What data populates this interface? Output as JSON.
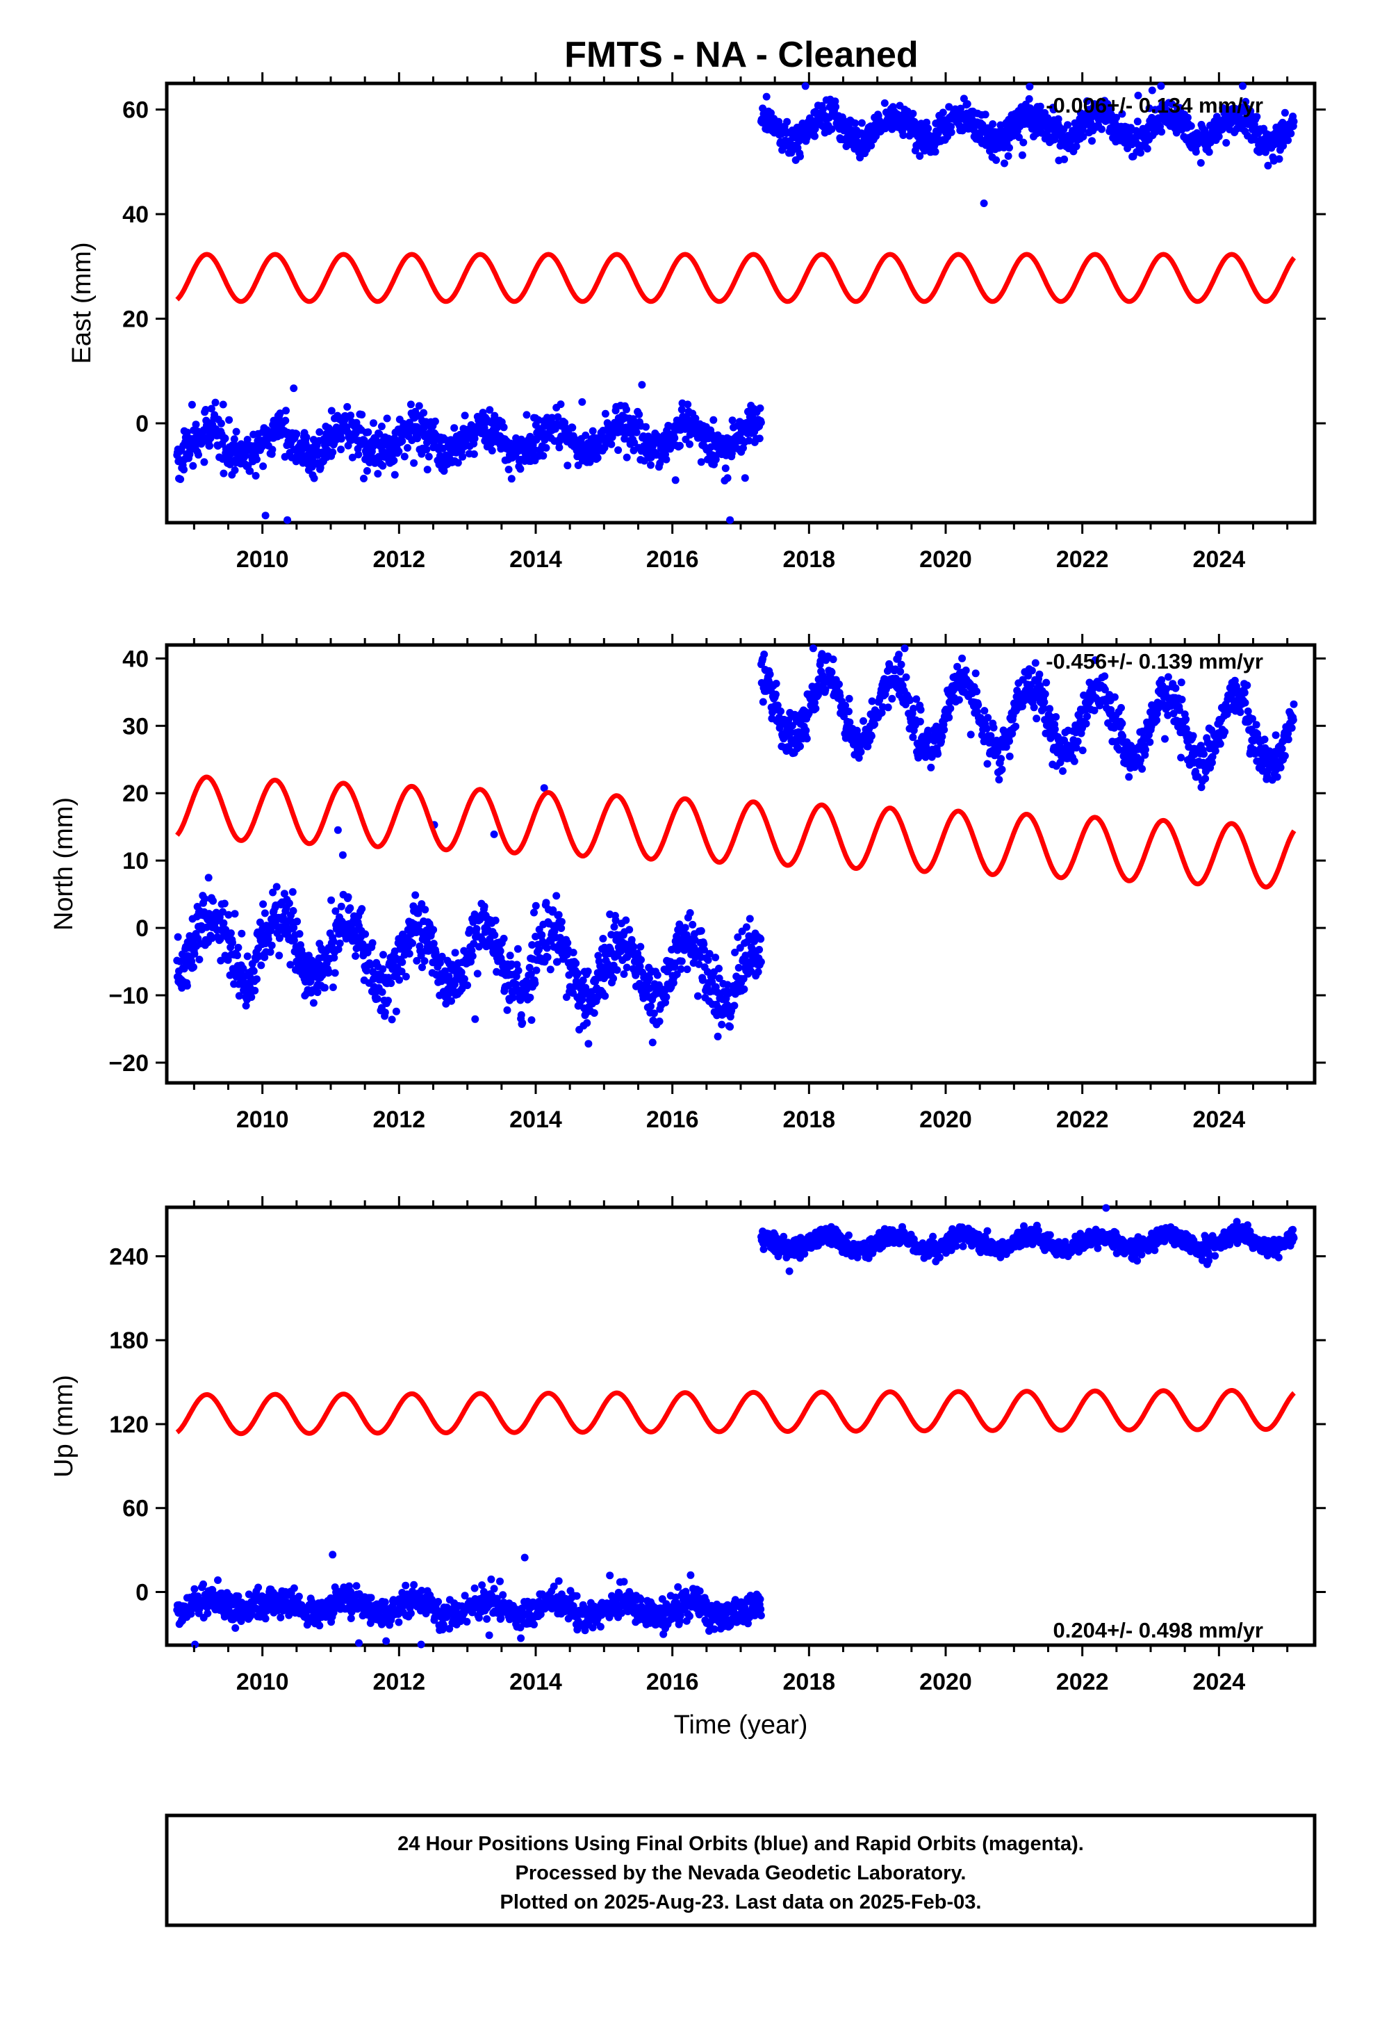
{
  "chart_data": [
    {
      "type": "scatter",
      "title": "FMTS  - NA - Cleaned",
      "xlabel": "",
      "ylabel": "East (mm)",
      "xlim": [
        2008.6,
        2025.4
      ],
      "ylim": [
        -19,
        65
      ],
      "x_ticks": [
        "2010",
        "2012",
        "2014",
        "2016",
        "2018",
        "2020",
        "2022",
        "2024"
      ],
      "y_ticks": [
        0,
        20,
        40,
        60
      ],
      "annotation": "-0.006+/- 0.134 mm/yr",
      "grid": false,
      "series": [
        {
          "color": "#0000ff",
          "marker": "dot",
          "segments": [
            {
              "x_start": 2008.75,
              "x_end": 2017.3,
              "base": -4,
              "amplitude": 2.5,
              "trend": 0.2,
              "scatter": 3.5
            },
            {
              "x_start": 2017.3,
              "x_end": 2025.1,
              "base": 56.5,
              "amplitude": 2.5,
              "trend": 0.0,
              "scatter": 3.0
            }
          ]
        },
        {
          "color": "#ff0000",
          "marker": "line",
          "x_start": 2008.75,
          "x_end": 2025.1,
          "center": 27.8,
          "amplitude": 4.5,
          "trend": 0.0
        }
      ]
    },
    {
      "type": "scatter",
      "title": "",
      "xlabel": "",
      "ylabel": "North (mm)",
      "xlim": [
        2008.6,
        2025.4
      ],
      "ylim": [
        -23,
        42
      ],
      "x_ticks": [
        "2010",
        "2012",
        "2014",
        "2016",
        "2018",
        "2020",
        "2022",
        "2024"
      ],
      "y_ticks": [
        -20,
        -10,
        0,
        10,
        20,
        30,
        40
      ],
      "annotation": "-0.456+/- 0.139 mm/yr",
      "grid": false,
      "series": [
        {
          "color": "#0000ff",
          "marker": "dot",
          "segments": [
            {
              "x_start": 2008.75,
              "x_end": 2017.3,
              "base": -2,
              "amplitude": 4.5,
              "trend": -0.6,
              "scatter": 4.0
            },
            {
              "x_start": 2017.3,
              "x_end": 2025.1,
              "base": 33,
              "amplitude": 5.0,
              "trend": -0.5,
              "scatter": 3.0
            }
          ]
        },
        {
          "color": "#ff0000",
          "marker": "line",
          "x_start": 2008.75,
          "x_end": 2025.1,
          "center": 18.0,
          "amplitude": 4.6,
          "trend": -0.46
        }
      ]
    },
    {
      "type": "scatter",
      "title": "",
      "xlabel": "Time (year)",
      "ylabel": "Up (mm)",
      "xlim": [
        2008.6,
        2025.4
      ],
      "ylim": [
        -38,
        275
      ],
      "x_ticks": [
        "2010",
        "2012",
        "2014",
        "2016",
        "2018",
        "2020",
        "2022",
        "2024"
      ],
      "y_ticks": [
        0,
        60,
        120,
        180,
        240
      ],
      "annotation": "0.204+/- 0.498 mm/yr",
      "grid": false,
      "series": [
        {
          "color": "#0000ff",
          "marker": "dot",
          "segments": [
            {
              "x_start": 2008.75,
              "x_end": 2017.3,
              "base": -9,
              "amplitude": 5,
              "trend": -0.5,
              "scatter": 9.0
            },
            {
              "x_start": 2017.3,
              "x_end": 2025.1,
              "base": 249,
              "amplitude": 5,
              "trend": 0.2,
              "scatter": 6.0
            }
          ]
        },
        {
          "color": "#ff0000",
          "marker": "line",
          "x_start": 2008.75,
          "x_end": 2025.1,
          "center": 127,
          "amplitude": 14,
          "trend": 0.2
        }
      ]
    }
  ],
  "footer": {
    "line1": "24 Hour Positions Using Final Orbits (blue) and Rapid Orbits (magenta).",
    "line2": "Processed by the Nevada Geodetic Laboratory.",
    "line3": "Plotted on 2025-Aug-23. Last data on 2025-Feb-03."
  }
}
